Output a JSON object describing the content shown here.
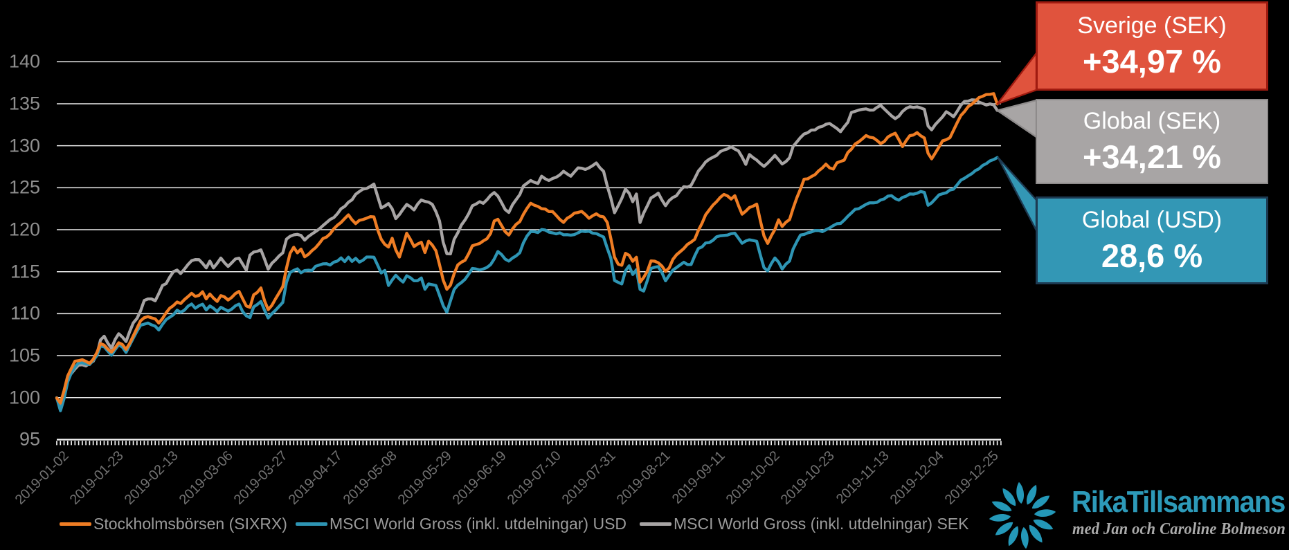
{
  "page": {
    "background": "#000000"
  },
  "y_axis": {
    "tick_labels": [
      "140",
      "135",
      "130",
      "125",
      "120",
      "115",
      "110",
      "105",
      "100",
      "95"
    ],
    "range": [
      95,
      140
    ]
  },
  "x_axis": {
    "tick_labels": [
      "2019-01-02",
      "2019-01-23",
      "2019-02-13",
      "2019-03-06",
      "2019-03-27",
      "2019-04-17",
      "2019-05-08",
      "2019-05-29",
      "2019-06-19",
      "2019-07-10",
      "2019-07-31",
      "2019-08-21",
      "2019-09-11",
      "2019-10-02",
      "2019-10-23",
      "2019-11-13",
      "2019-12-04",
      "2019-12-25"
    ],
    "minor_tick_count": 260
  },
  "chart_data": {
    "type": "line",
    "title": "",
    "xlabel": "",
    "ylabel": "",
    "ylim": [
      95,
      140
    ],
    "grid": "horizontal",
    "legend_position": "bottom",
    "x_tick_labels": [
      "2019-01-02",
      "2019-01-23",
      "2019-02-13",
      "2019-03-06",
      "2019-03-27",
      "2019-04-17",
      "2019-05-08",
      "2019-05-29",
      "2019-06-19",
      "2019-07-10",
      "2019-07-31",
      "2019-08-21",
      "2019-09-11",
      "2019-10-02",
      "2019-10-23",
      "2019-11-13",
      "2019-12-04",
      "2019-12-25"
    ],
    "series": [
      {
        "name": "Stockholmsbörsen (SIXRX)",
        "color": "#EF7D24",
        "values": [
          99.95,
          99.35,
          100.83,
          102.58,
          103.49,
          104.34,
          104.4,
          104.51,
          104.32,
          104.07,
          104.58,
          105.36,
          106.44,
          106.25,
          105.78,
          105.42,
          105.94,
          106.53,
          106.32,
          105.75,
          106.46,
          107.36,
          108.26,
          109.16,
          109.52,
          109.64,
          109.5,
          109.38,
          108.88,
          109.42,
          110.11,
          110.65,
          110.96,
          111.39,
          111.21,
          111.66,
          112.03,
          112.42,
          112.06,
          112.17,
          112.61,
          111.75,
          112.34,
          111.85,
          111.46,
          112.15,
          111.99,
          111.62,
          111.94,
          112.39,
          112.65,
          111.77,
          110.92,
          110.75,
          112.24,
          112.53,
          113.06,
          111.52,
          110.48,
          110.98,
          111.76,
          112.47,
          113.22,
          115.41,
          117.18,
          117.91,
          117.24,
          117.69,
          116.77,
          117.06,
          117.5,
          117.86,
          118.37,
          118.94,
          119.13,
          119.51,
          120.11,
          120.54,
          120.87,
          121.34,
          121.77,
          121.18,
          120.73,
          121.11,
          121.21,
          121.37,
          121.55,
          121.53,
          120.03,
          118.86,
          118.25,
          117.93,
          118.98,
          117.6,
          116.74,
          118.15,
          119.58,
          118.85,
          118.0,
          118.3,
          118.5,
          117.28,
          118.63,
          118.18,
          117.5,
          115.84,
          114.0,
          112.91,
          113.39,
          114.75,
          115.81,
          116.14,
          116.36,
          117.15,
          118.08,
          118.23,
          118.36,
          118.67,
          118.92,
          119.56,
          121.03,
          121.24,
          120.5,
          119.76,
          119.37,
          120.08,
          120.64,
          120.96,
          121.82,
          122.55,
          123.15,
          122.92,
          122.77,
          122.5,
          122.46,
          122.15,
          122.16,
          121.71,
          121.22,
          120.87,
          121.36,
          121.61,
          121.98,
          122.05,
          122.18,
          121.81,
          121.36,
          121.66,
          121.9,
          121.61,
          121.53,
          120.87,
          118.95,
          116.74,
          115.9,
          115.76,
          117.19,
          116.95,
          116.24,
          116.72,
          113.75,
          114.31,
          115.06,
          116.28,
          116.25,
          116.06,
          115.67,
          115.03,
          115.45,
          116.46,
          117.01,
          117.38,
          117.76,
          118.25,
          118.53,
          118.86,
          119.92,
          120.77,
          121.78,
          122.36,
          122.93,
          123.34,
          123.85,
          124.2,
          124.02,
          123.65,
          124.05,
          122.89,
          121.85,
          122.21,
          122.64,
          122.8,
          123.05,
          121.1,
          119.26,
          118.37,
          119.27,
          120.02,
          121.19,
          120.39,
          120.88,
          121.2,
          122.55,
          123.79,
          124.85,
          126.02,
          126.06,
          126.33,
          126.55,
          127.01,
          127.36,
          127.81,
          127.37,
          127.22,
          127.96,
          128.13,
          128.28,
          129.19,
          129.6,
          130.21,
          130.47,
          130.83,
          131.22,
          131.01,
          130.94,
          130.63,
          130.25,
          130.5,
          131.04,
          131.3,
          131.49,
          130.73,
          129.9,
          130.61,
          131.2,
          131.28,
          131.56,
          131.19,
          130.92,
          129.11,
          128.44,
          129.14,
          129.86,
          130.58,
          130.72,
          130.96,
          131.84,
          132.75,
          133.6,
          134.07,
          134.65,
          134.95,
          135.34,
          135.74,
          135.9,
          136.1,
          136.12,
          136.21,
          134.97
        ]
      },
      {
        "name": "MSCI World Gross (inkl. utdelningar) USD",
        "color": "#2E95B4",
        "values": [
          99.98,
          98.44,
          99.87,
          101.88,
          102.95,
          103.64,
          104.12,
          104.15,
          104.01,
          103.94,
          104.43,
          105.0,
          106.17,
          106.05,
          105.54,
          105.05,
          105.71,
          106.28,
          106.02,
          105.38,
          106.24,
          107.1,
          107.91,
          108.62,
          108.75,
          108.89,
          108.67,
          108.51,
          108.05,
          108.71,
          109.29,
          109.57,
          109.87,
          110.41,
          110.16,
          110.41,
          110.89,
          111.15,
          110.65,
          110.94,
          111.13,
          110.44,
          110.92,
          110.64,
          110.25,
          110.76,
          110.53,
          110.3,
          110.55,
          110.93,
          111.14,
          110.24,
          109.75,
          109.53,
          110.8,
          111.09,
          111.45,
          110.4,
          109.49,
          109.99,
          110.4,
          110.87,
          111.34,
          113.73,
          114.89,
          115.15,
          115.34,
          114.87,
          115.13,
          115.18,
          115.14,
          115.64,
          115.79,
          115.93,
          115.95,
          115.79,
          116.14,
          116.27,
          116.64,
          116.2,
          116.73,
          116.23,
          116.59,
          116.14,
          116.37,
          116.75,
          116.75,
          116.72,
          115.8,
          114.84,
          115.15,
          113.36,
          114.01,
          114.57,
          114.13,
          113.76,
          114.51,
          114.28,
          113.91,
          113.93,
          114.25,
          112.91,
          113.54,
          113.45,
          113.35,
          112.18,
          110.95,
          110.17,
          111.53,
          112.87,
          113.4,
          113.71,
          114.1,
          114.71,
          115.39,
          115.32,
          115.21,
          115.32,
          115.5,
          115.84,
          116.51,
          117.4,
          117.04,
          116.5,
          116.26,
          116.62,
          116.88,
          117.25,
          118.43,
          119.25,
          119.79,
          119.77,
          119.66,
          120.02,
          119.96,
          119.71,
          119.62,
          119.51,
          119.63,
          119.39,
          119.4,
          119.35,
          119.42,
          119.63,
          119.83,
          119.78,
          119.82,
          119.59,
          119.54,
          119.33,
          119.13,
          117.79,
          116.59,
          113.95,
          113.73,
          113.54,
          115.1,
          115.7,
          114.66,
          115.24,
          112.89,
          112.69,
          113.95,
          115.39,
          115.53,
          115.6,
          114.87,
          113.91,
          114.56,
          115.18,
          115.49,
          115.81,
          116.12,
          115.86,
          115.85,
          116.87,
          117.76,
          117.95,
          118.42,
          118.47,
          118.73,
          119.15,
          119.28,
          119.32,
          119.36,
          119.52,
          119.58,
          118.99,
          118.39,
          118.66,
          118.8,
          118.72,
          118.62,
          116.99,
          115.48,
          115.09,
          115.95,
          116.63,
          116.14,
          115.31,
          115.9,
          116.26,
          117.7,
          118.58,
          119.36,
          119.43,
          119.63,
          119.73,
          119.9,
          119.91,
          119.76,
          119.99,
          120.21,
          120.49,
          120.71,
          120.74,
          121.14,
          121.6,
          122.0,
          122.43,
          122.5,
          122.76,
          123.02,
          123.21,
          123.2,
          123.26,
          123.54,
          123.68,
          124.0,
          124.05,
          123.7,
          123.52,
          123.84,
          124.0,
          124.26,
          124.24,
          124.34,
          124.55,
          124.44,
          122.91,
          123.2,
          123.68,
          124.15,
          124.29,
          124.4,
          124.72,
          124.83,
          125.35,
          125.9,
          126.12,
          126.41,
          126.68,
          127.04,
          127.26,
          127.66,
          127.87,
          128.2,
          128.36,
          128.6
        ]
      },
      {
        "name": "MSCI World Gross (inkl. utdelningar) SEK",
        "color": "#A7A4A4",
        "values": [
          99.99,
          99.24,
          100.61,
          102.34,
          102.88,
          103.41,
          103.87,
          103.92,
          103.77,
          104.11,
          104.33,
          105.12,
          106.87,
          107.31,
          106.5,
          105.88,
          106.92,
          107.61,
          107.21,
          106.68,
          107.86,
          108.91,
          109.43,
          110.34,
          111.58,
          111.75,
          111.75,
          111.53,
          112.4,
          113.35,
          113.58,
          114.35,
          115.0,
          115.19,
          114.78,
          115.29,
          115.86,
          116.31,
          116.44,
          116.43,
          116.0,
          115.45,
          116.26,
          115.45,
          116.0,
          116.62,
          116.08,
          115.63,
          116.06,
          116.51,
          116.61,
          115.89,
          115.18,
          116.97,
          117.33,
          117.42,
          117.6,
          116.48,
          115.3,
          116.0,
          116.4,
          116.88,
          117.24,
          118.87,
          119.21,
          119.38,
          119.44,
          119.32,
          118.76,
          119.19,
          119.49,
          119.78,
          120.08,
          120.48,
          120.85,
          121.22,
          121.44,
          121.91,
          122.5,
          122.78,
          123.27,
          123.56,
          124.22,
          124.54,
          124.83,
          124.91,
          125.15,
          125.44,
          124.0,
          122.6,
          122.82,
          123.12,
          122.48,
          121.32,
          121.81,
          122.44,
          123.01,
          122.74,
          122.35,
          123.05,
          123.54,
          123.37,
          123.28,
          123.02,
          122.15,
          121.04,
          118.51,
          117.14,
          117.12,
          118.85,
          119.62,
          120.56,
          121.16,
          121.91,
          122.85,
          123.06,
          123.34,
          123.14,
          123.57,
          124.1,
          124.43,
          124.01,
          123.22,
          122.41,
          122.05,
          122.97,
          123.58,
          124.17,
          125.2,
          125.53,
          125.86,
          125.65,
          125.51,
          126.37,
          126.07,
          125.86,
          126.1,
          126.25,
          126.53,
          126.96,
          126.65,
          126.37,
          126.88,
          127.36,
          127.32,
          127.18,
          127.37,
          127.63,
          127.95,
          127.38,
          126.95,
          125.2,
          123.77,
          122.02,
          122.85,
          123.73,
          124.84,
          124.34,
          123.33,
          124.25,
          120.86,
          121.98,
          122.85,
          123.78,
          124.04,
          124.35,
          123.54,
          122.86,
          123.48,
          123.84,
          124.05,
          124.66,
          125.12,
          125.07,
          125.28,
          126.09,
          126.98,
          127.49,
          128.07,
          128.4,
          128.63,
          128.84,
          129.3,
          129.49,
          129.63,
          129.89,
          129.59,
          129.39,
          128.65,
          127.78,
          128.95,
          128.59,
          128.29,
          127.89,
          127.54,
          127.93,
          128.38,
          128.85,
          128.33,
          127.83,
          128.11,
          128.57,
          129.93,
          130.45,
          130.98,
          131.4,
          131.55,
          131.87,
          131.88,
          132.2,
          132.3,
          132.56,
          132.65,
          132.35,
          132.06,
          131.67,
          132.26,
          132.79,
          133.98,
          134.1,
          134.25,
          134.34,
          134.39,
          134.24,
          134.25,
          134.57,
          134.81,
          134.38,
          133.97,
          133.56,
          133.23,
          133.52,
          134.08,
          134.45,
          134.64,
          134.57,
          134.63,
          134.5,
          134.34,
          132.35,
          131.89,
          132.53,
          132.99,
          133.45,
          134.05,
          133.79,
          133.45,
          134.11,
          134.83,
          135.28,
          135.3,
          135.47,
          135.44,
          135.2,
          135.03,
          134.85,
          134.98,
          134.87,
          134.21
        ]
      }
    ]
  },
  "callouts": [
    {
      "label": "Sverige (SEK)",
      "value": "+34,97 %",
      "fill": "#E0533D",
      "border": "#A01B10"
    },
    {
      "label": "Global (SEK)",
      "value": "+34,21 %",
      "fill": "#A8A5A5",
      "border": "#8E8B8B"
    },
    {
      "label": "Global (USD)",
      "value": "28,6 %",
      "fill": "#3397B5",
      "border": "#1D3A52"
    }
  ],
  "legend": {
    "items": [
      {
        "label": "Stockholmsbörsen (SIXRX)",
        "color": "#EF7D24"
      },
      {
        "label": "MSCI World Gross (inkl. utdelningar) USD",
        "color": "#2E95B4"
      },
      {
        "label": "MSCI World Gross (inkl. utdelningar) SEK",
        "color": "#A7A4A4"
      }
    ]
  },
  "logo": {
    "title": "RikaTillsammans",
    "subtitle": "med Jan och Caroline Bolmeson",
    "brand_color": "#2D9AB9",
    "petal_color": "#2498B8"
  }
}
